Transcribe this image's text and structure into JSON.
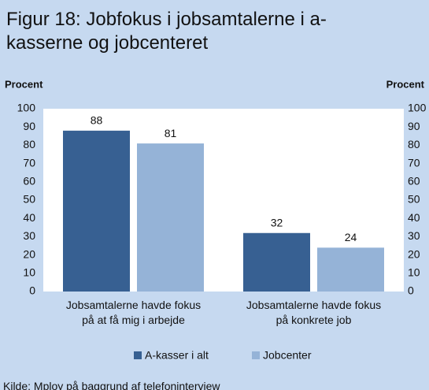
{
  "chart_data": {
    "type": "bar",
    "title": "Figur 18: Jobfokus i jobsamtalerne i a-kasserne og jobcenteret",
    "y_label": "Procent",
    "y2_label": "Procent",
    "categories": [
      "Jobsamtalerne havde fokus på at få mig i arbejde",
      "Jobsamtalerne havde fokus på konkrete job"
    ],
    "series": [
      {
        "name": "A-kasser i alt",
        "color": "#376092",
        "values": [
          88,
          32
        ]
      },
      {
        "name": "Jobcenter",
        "color": "#95b3d7",
        "values": [
          81,
          24
        ]
      }
    ],
    "ylim": [
      0,
      100
    ],
    "yticks": [
      0,
      10,
      20,
      30,
      40,
      50,
      60,
      70,
      80,
      90,
      100
    ],
    "y2lim": [
      0,
      100
    ],
    "y2ticks": [
      0,
      10,
      20,
      30,
      40,
      50,
      60,
      70,
      80,
      90,
      100
    ],
    "legend": "bottom",
    "source": "Kilde: Mploy på baggrund af telefoninterview"
  }
}
